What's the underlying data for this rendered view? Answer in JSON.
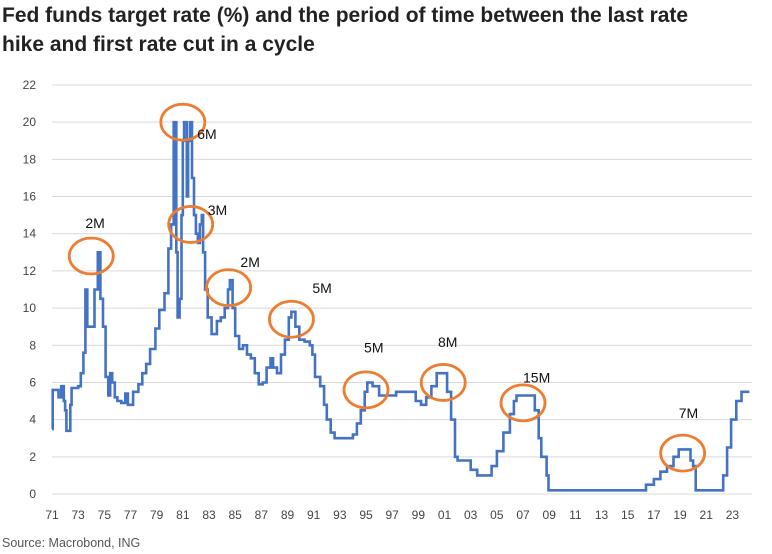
{
  "title_lines": [
    "Fed funds target rate (%) and the period of time between the last rate",
    "hike and first rate cut in a cycle"
  ],
  "source": "Source: Macrobond, ING",
  "colors": {
    "line": "#4472C4",
    "circle": "#ED7D31",
    "grid": "#D9D9D9"
  },
  "chart_data": {
    "type": "line",
    "title": "Fed funds target rate (%) and the period of time between the last rate hike and first rate cut in a cycle",
    "xlabel": "",
    "ylabel": "",
    "xlim": [
      1971,
      2024.5
    ],
    "ylim": [
      0,
      22
    ],
    "yticks": [
      0,
      2,
      4,
      6,
      8,
      10,
      12,
      14,
      16,
      18,
      20,
      22
    ],
    "xticks": [
      1971,
      1973,
      1975,
      1977,
      1979,
      1981,
      1983,
      1985,
      1987,
      1989,
      1991,
      1993,
      1995,
      1997,
      1999,
      2001,
      2003,
      2005,
      2007,
      2009,
      2011,
      2013,
      2015,
      2017,
      2019,
      2021,
      2023
    ],
    "xtick_labels": [
      "71",
      "73",
      "75",
      "77",
      "79",
      "81",
      "83",
      "85",
      "87",
      "89",
      "91",
      "93",
      "95",
      "97",
      "99",
      "01",
      "03",
      "05",
      "07",
      "09",
      "11",
      "13",
      "15",
      "17",
      "19",
      "21",
      "23"
    ],
    "grid": "horizontal",
    "series": [
      {
        "points": [
          [
            1971.0,
            3.5
          ],
          [
            1971.05,
            5.6
          ],
          [
            1971.3,
            5.6
          ],
          [
            1971.5,
            5.2
          ],
          [
            1971.7,
            5.8
          ],
          [
            1971.9,
            5.0
          ],
          [
            1972.0,
            4.5
          ],
          [
            1972.1,
            3.4
          ],
          [
            1972.3,
            3.4
          ],
          [
            1972.4,
            4.8
          ],
          [
            1972.5,
            5.7
          ],
          [
            1972.8,
            5.7
          ],
          [
            1973.0,
            5.8
          ],
          [
            1973.2,
            6.5
          ],
          [
            1973.4,
            7.6
          ],
          [
            1973.55,
            11.0
          ],
          [
            1973.7,
            9.0
          ],
          [
            1974.1,
            9.0
          ],
          [
            1974.25,
            11.0
          ],
          [
            1974.5,
            13.0
          ],
          [
            1974.7,
            10.5
          ],
          [
            1974.9,
            9.0
          ],
          [
            1975.1,
            6.3
          ],
          [
            1975.3,
            5.3
          ],
          [
            1975.45,
            6.5
          ],
          [
            1975.6,
            6.0
          ],
          [
            1975.8,
            5.2
          ],
          [
            1976.0,
            5.0
          ],
          [
            1976.3,
            4.9
          ],
          [
            1976.6,
            5.4
          ],
          [
            1976.8,
            4.8
          ],
          [
            1977.0,
            4.8
          ],
          [
            1977.2,
            5.5
          ],
          [
            1977.6,
            5.9
          ],
          [
            1977.9,
            6.5
          ],
          [
            1978.2,
            7.0
          ],
          [
            1978.5,
            7.8
          ],
          [
            1978.9,
            8.9
          ],
          [
            1979.2,
            9.9
          ],
          [
            1979.6,
            10.8
          ],
          [
            1979.9,
            13.2
          ],
          [
            1980.1,
            14.5
          ],
          [
            1980.3,
            20.0
          ],
          [
            1980.5,
            13.0
          ],
          [
            1980.6,
            9.5
          ],
          [
            1980.75,
            10.5
          ],
          [
            1980.9,
            15.0
          ],
          [
            1981.0,
            19.0
          ],
          [
            1981.1,
            20.0
          ],
          [
            1981.3,
            16.0
          ],
          [
            1981.4,
            19.0
          ],
          [
            1981.55,
            20.0
          ],
          [
            1981.7,
            17.0
          ],
          [
            1981.85,
            15.0
          ],
          [
            1982.0,
            14.0
          ],
          [
            1982.15,
            13.5
          ],
          [
            1982.3,
            14.5
          ],
          [
            1982.45,
            15.0
          ],
          [
            1982.55,
            13.0
          ],
          [
            1982.7,
            11.0
          ],
          [
            1982.9,
            9.5
          ],
          [
            1983.2,
            8.6
          ],
          [
            1983.6,
            9.3
          ],
          [
            1983.9,
            9.5
          ],
          [
            1984.2,
            10.0
          ],
          [
            1984.45,
            11.0
          ],
          [
            1984.6,
            11.5
          ],
          [
            1984.8,
            10.0
          ],
          [
            1985.0,
            8.5
          ],
          [
            1985.3,
            7.8
          ],
          [
            1985.6,
            8.0
          ],
          [
            1985.9,
            7.5
          ],
          [
            1986.2,
            7.3
          ],
          [
            1986.5,
            6.5
          ],
          [
            1986.8,
            5.9
          ],
          [
            1987.1,
            6.0
          ],
          [
            1987.4,
            6.8
          ],
          [
            1987.7,
            7.3
          ],
          [
            1987.9,
            6.8
          ],
          [
            1988.2,
            6.5
          ],
          [
            1988.5,
            7.5
          ],
          [
            1988.8,
            8.3
          ],
          [
            1989.1,
            9.5
          ],
          [
            1989.3,
            9.8
          ],
          [
            1989.6,
            9.0
          ],
          [
            1989.9,
            8.3
          ],
          [
            1990.3,
            8.2
          ],
          [
            1990.7,
            8.0
          ],
          [
            1990.9,
            7.5
          ],
          [
            1991.1,
            6.3
          ],
          [
            1991.5,
            5.8
          ],
          [
            1991.8,
            4.8
          ],
          [
            1992.0,
            4.0
          ],
          [
            1992.3,
            3.3
          ],
          [
            1992.6,
            3.0
          ],
          [
            1993.5,
            3.0
          ],
          [
            1994.0,
            3.2
          ],
          [
            1994.3,
            3.8
          ],
          [
            1994.6,
            4.5
          ],
          [
            1994.9,
            5.5
          ],
          [
            1995.1,
            6.0
          ],
          [
            1995.5,
            5.8
          ],
          [
            1996.0,
            5.3
          ],
          [
            1996.5,
            5.3
          ],
          [
            1997.0,
            5.3
          ],
          [
            1997.3,
            5.5
          ],
          [
            1998.5,
            5.5
          ],
          [
            1998.8,
            5.0
          ],
          [
            1999.2,
            4.8
          ],
          [
            1999.6,
            5.2
          ],
          [
            2000.0,
            5.8
          ],
          [
            2000.4,
            6.5
          ],
          [
            2001.0,
            6.5
          ],
          [
            2001.2,
            5.5
          ],
          [
            2001.5,
            4.0
          ],
          [
            2001.8,
            2.0
          ],
          [
            2002.0,
            1.8
          ],
          [
            2003.0,
            1.3
          ],
          [
            2003.5,
            1.0
          ],
          [
            2004.3,
            1.0
          ],
          [
            2004.6,
            1.5
          ],
          [
            2005.0,
            2.3
          ],
          [
            2005.5,
            3.3
          ],
          [
            2006.0,
            4.3
          ],
          [
            2006.3,
            5.0
          ],
          [
            2006.5,
            5.3
          ],
          [
            2007.6,
            5.3
          ],
          [
            2007.9,
            4.5
          ],
          [
            2008.2,
            3.0
          ],
          [
            2008.4,
            2.0
          ],
          [
            2008.8,
            1.0
          ],
          [
            2008.95,
            0.2
          ],
          [
            2015.9,
            0.2
          ],
          [
            2016.4,
            0.5
          ],
          [
            2017.0,
            0.8
          ],
          [
            2017.5,
            1.2
          ],
          [
            2018.0,
            1.5
          ],
          [
            2018.5,
            2.0
          ],
          [
            2018.9,
            2.4
          ],
          [
            2019.5,
            2.4
          ],
          [
            2019.8,
            1.8
          ],
          [
            2020.0,
            1.5
          ],
          [
            2020.2,
            0.2
          ],
          [
            2021.9,
            0.2
          ],
          [
            2022.3,
            1.0
          ],
          [
            2022.6,
            2.5
          ],
          [
            2022.9,
            4.0
          ],
          [
            2023.3,
            5.0
          ],
          [
            2023.7,
            5.5
          ],
          [
            2024.3,
            5.5
          ]
        ]
      }
    ],
    "annotations": [
      {
        "label": "2M",
        "cx": 1974.0,
        "cy": 12.8,
        "lx": 1973.55,
        "ly": 14.3
      },
      {
        "label": "6M",
        "cx": 1981.0,
        "cy": 20.0,
        "lx": 1982.1,
        "ly": 19.1
      },
      {
        "label": "3M",
        "cx": 1981.6,
        "cy": 14.5,
        "lx": 1982.9,
        "ly": 15.0
      },
      {
        "label": "2M",
        "cx": 1984.5,
        "cy": 11.1,
        "lx": 1985.4,
        "ly": 12.2
      },
      {
        "label": "5M",
        "cx": 1989.3,
        "cy": 9.4,
        "lx": 1990.9,
        "ly": 10.8
      },
      {
        "label": "5M",
        "cx": 1995.0,
        "cy": 5.6,
        "lx": 1994.85,
        "ly": 7.6
      },
      {
        "label": "8M",
        "cx": 2000.9,
        "cy": 6.0,
        "lx": 2000.5,
        "ly": 7.9
      },
      {
        "label": "15M",
        "cx": 2007.0,
        "cy": 4.9,
        "lx": 2007.0,
        "ly": 6.0
      },
      {
        "label": "7M",
        "cx": 2019.2,
        "cy": 2.2,
        "lx": 2018.9,
        "ly": 4.1
      }
    ]
  }
}
